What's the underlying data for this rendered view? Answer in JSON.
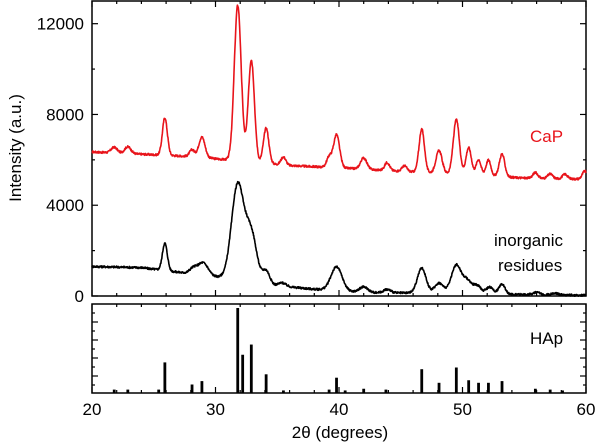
{
  "chart_data": [
    {
      "type": "line",
      "xlabel": "2θ (degrees)",
      "ylabel": "Intensity (a.u.)",
      "xlim": [
        20,
        60
      ],
      "ylim": [
        0,
        13000
      ],
      "x_ticks": [
        20,
        30,
        40,
        50,
        60
      ],
      "y_ticks": [
        0,
        4000,
        8000,
        12000
      ],
      "grid": false,
      "series": [
        {
          "name": "CaP",
          "color": "#e8141b",
          "baseline": [
            [
              20,
              6350
            ],
            [
              24,
              6250
            ],
            [
              28,
              6150
            ],
            [
              32,
              5950
            ],
            [
              36,
              5750
            ],
            [
              40,
              5650
            ],
            [
              45,
              5500
            ],
            [
              50,
              5350
            ],
            [
              55,
              5200
            ],
            [
              60,
              5150
            ]
          ],
          "peaks": [
            [
              21.8,
              250,
              0.25
            ],
            [
              22.9,
              300,
              0.25
            ],
            [
              25.9,
              1650,
              0.2
            ],
            [
              28.1,
              300,
              0.2
            ],
            [
              28.9,
              900,
              0.25
            ],
            [
              31.8,
              6850,
              0.28
            ],
            [
              32.9,
              4500,
              0.25
            ],
            [
              34.1,
              1550,
              0.22
            ],
            [
              35.5,
              350,
              0.2
            ],
            [
              39.2,
              450,
              0.2
            ],
            [
              39.8,
              1450,
              0.25
            ],
            [
              42.0,
              500,
              0.25
            ],
            [
              43.9,
              350,
              0.2
            ],
            [
              45.3,
              250,
              0.2
            ],
            [
              46.7,
              1900,
              0.22
            ],
            [
              48.1,
              1000,
              0.25
            ],
            [
              49.5,
              2400,
              0.25
            ],
            [
              50.5,
              1200,
              0.22
            ],
            [
              51.3,
              700,
              0.2
            ],
            [
              52.1,
              700,
              0.2
            ],
            [
              53.2,
              1000,
              0.22
            ],
            [
              55.9,
              250,
              0.2
            ],
            [
              57.1,
              200,
              0.2
            ],
            [
              58.3,
              200,
              0.2
            ],
            [
              59.9,
              350,
              0.2
            ]
          ]
        },
        {
          "name": "inorganic residues",
          "color": "#000000",
          "baseline": [
            [
              20,
              1300
            ],
            [
              24,
              1250
            ],
            [
              27,
              1050
            ],
            [
              30,
              850
            ],
            [
              34,
              500
            ],
            [
              38,
              300
            ],
            [
              42,
              150
            ],
            [
              46,
              130
            ],
            [
              50,
              110
            ],
            [
              55,
              60
            ],
            [
              60,
              30
            ]
          ],
          "peaks": [
            [
              25.9,
              1200,
              0.2
            ],
            [
              28.2,
              250,
              0.3
            ],
            [
              29.0,
              550,
              0.4
            ],
            [
              31.8,
              4200,
              0.5
            ],
            [
              32.9,
              2100,
              0.45
            ],
            [
              34.1,
              600,
              0.3
            ],
            [
              35.4,
              150,
              0.3
            ],
            [
              39.8,
              1050,
              0.45
            ],
            [
              42.0,
              250,
              0.35
            ],
            [
              43.9,
              150,
              0.3
            ],
            [
              46.7,
              1100,
              0.35
            ],
            [
              48.1,
              450,
              0.35
            ],
            [
              49.5,
              1250,
              0.4
            ],
            [
              50.4,
              550,
              0.35
            ],
            [
              51.2,
              350,
              0.3
            ],
            [
              52.2,
              300,
              0.3
            ],
            [
              53.2,
              450,
              0.25
            ],
            [
              56.0,
              100,
              0.3
            ],
            [
              57.5,
              80,
              0.3
            ]
          ]
        }
      ]
    },
    {
      "type": "bar",
      "name": "HAp",
      "xlim": [
        20,
        60
      ],
      "x_ticks": [
        20,
        30,
        40,
        50,
        60
      ],
      "ylim": [
        0,
        100
      ],
      "lines": [
        [
          21.8,
          4
        ],
        [
          22.9,
          4
        ],
        [
          25.4,
          4
        ],
        [
          25.9,
          36
        ],
        [
          28.1,
          10
        ],
        [
          28.9,
          14
        ],
        [
          31.8,
          100
        ],
        [
          32.2,
          45
        ],
        [
          32.9,
          57
        ],
        [
          34.1,
          22
        ],
        [
          35.5,
          3
        ],
        [
          39.2,
          4
        ],
        [
          39.8,
          18
        ],
        [
          40.5,
          3
        ],
        [
          42.0,
          5
        ],
        [
          43.8,
          4
        ],
        [
          46.7,
          28
        ],
        [
          48.1,
          12
        ],
        [
          49.5,
          30
        ],
        [
          50.5,
          15
        ],
        [
          51.3,
          12
        ],
        [
          52.1,
          12
        ],
        [
          53.2,
          14
        ],
        [
          55.9,
          5
        ],
        [
          57.1,
          4
        ],
        [
          58.1,
          3
        ]
      ]
    }
  ]
}
